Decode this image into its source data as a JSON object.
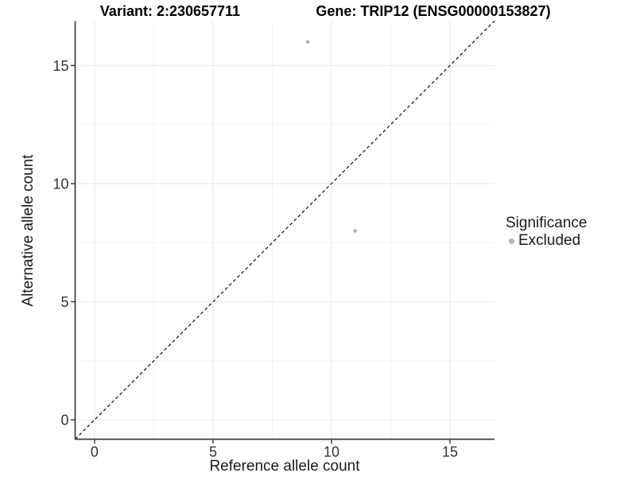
{
  "titles": {
    "variant": "Variant: 2:230657711",
    "gene": "Gene: TRIP12 (ENSG00000153827)"
  },
  "chart_data": {
    "type": "scatter",
    "title_left": "Variant: 2:230657711",
    "title_right": "Gene: TRIP12 (ENSG00000153827)",
    "xlabel": "Reference allele count",
    "ylabel": "Alternative allele count",
    "x_ticks": [
      0,
      5,
      10,
      15
    ],
    "y_ticks": [
      0,
      5,
      10,
      15
    ],
    "x_minor_ticks": [
      2.5,
      7.5,
      12.5
    ],
    "y_minor_ticks": [
      2.5,
      7.5,
      12.5
    ],
    "xlim": [
      -0.82,
      16.88
    ],
    "ylim": [
      -0.82,
      16.88
    ],
    "grid": "major and minor, light gray on white",
    "identity_line": {
      "equation": "y = x",
      "style": "dashed",
      "color": "#111111"
    },
    "series": [
      {
        "name": "Excluded",
        "color": "#b5b5b5",
        "points": [
          {
            "x": 9,
            "y": 16
          },
          {
            "x": 11,
            "y": 8
          }
        ]
      }
    ],
    "legend": {
      "title": "Significance",
      "position": "right",
      "items": [
        {
          "label": "Excluded",
          "color": "#b5b5b5"
        }
      ]
    },
    "colors": {
      "grid_major": "#e9e9e9",
      "grid_minor": "#f4f4f4",
      "axis_line": "#3c3c3c",
      "tick_text": "#333333"
    }
  }
}
